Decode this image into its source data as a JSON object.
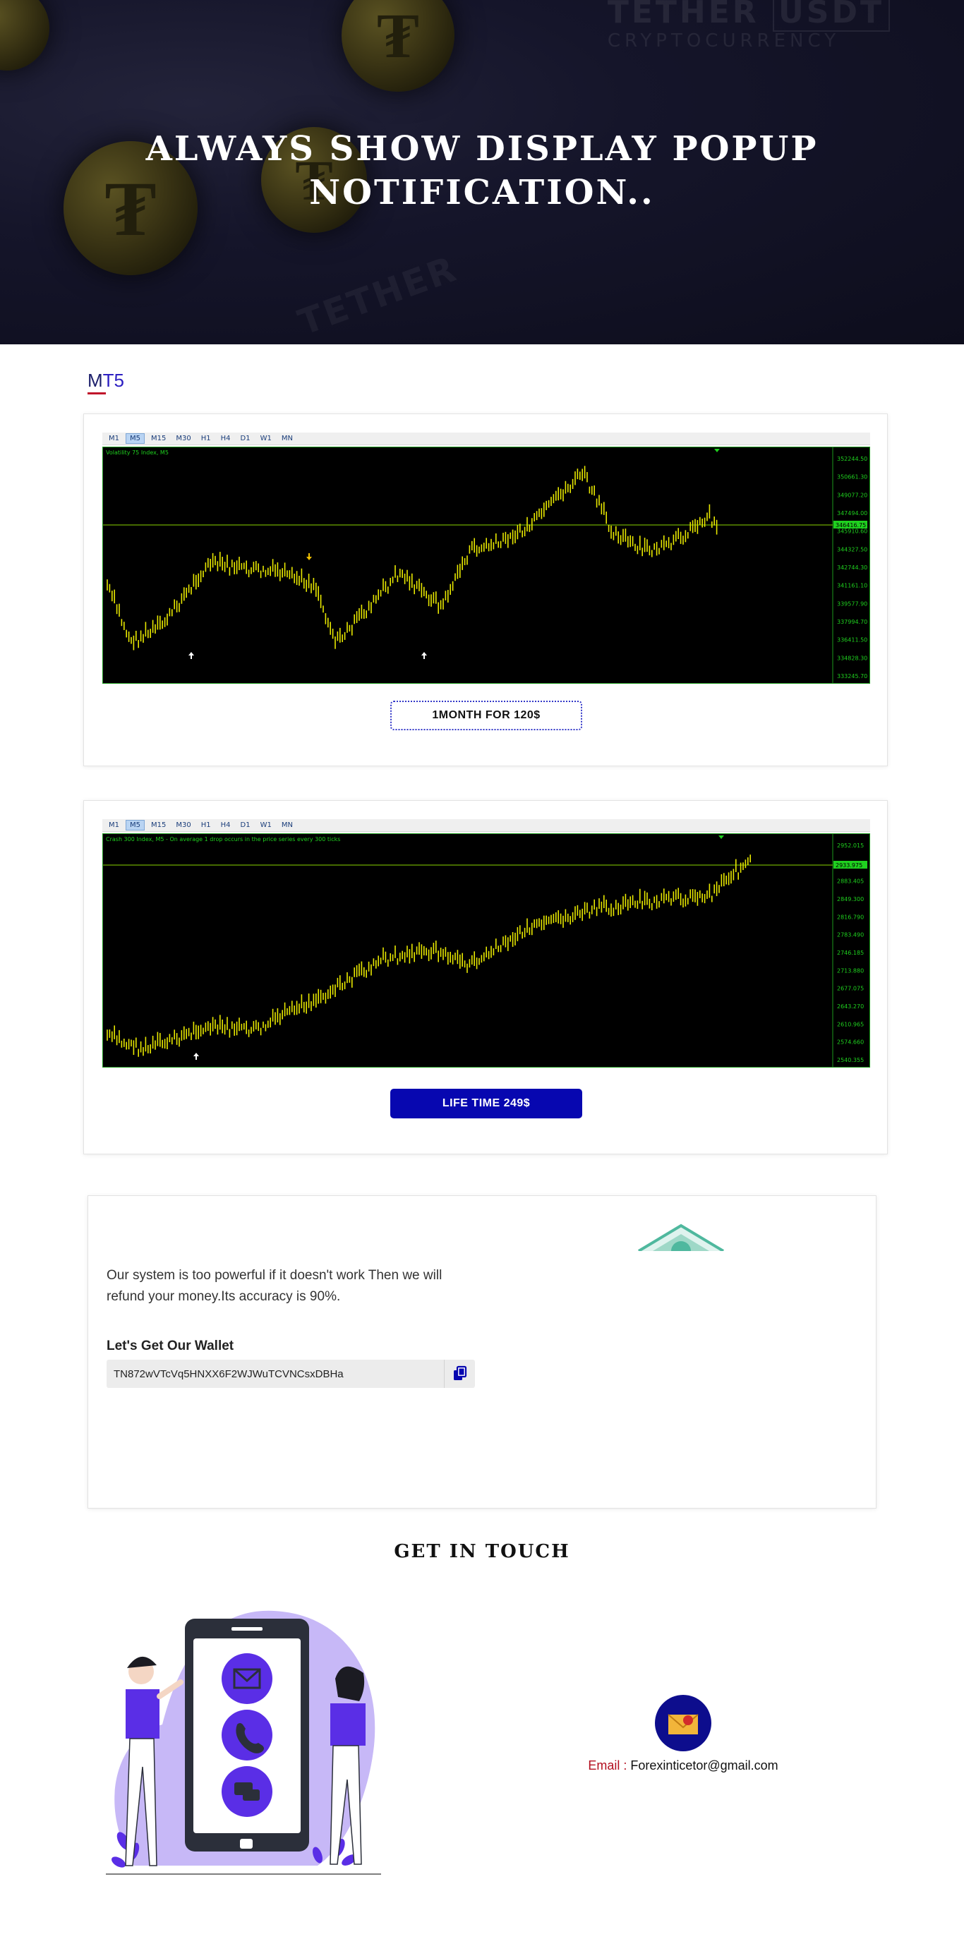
{
  "hero": {
    "title_line1": "Always show display popup",
    "title_line2": "notification..",
    "bg_brand_top": "TETHER",
    "bg_brand_badge": "USDT",
    "bg_brand_sub": "CRYPTOCURRENCY",
    "bg_word": "TETHER",
    "coin_glyph": "₮"
  },
  "section": {
    "platform_first": "M",
    "platform_rest": "T5"
  },
  "timeframes": [
    "M1",
    "M5",
    "M15",
    "M30",
    "H1",
    "H4",
    "D1",
    "W1",
    "MN"
  ],
  "active_timeframe": "M5",
  "products": [
    {
      "chart_label": "Volatility 75 Index, M5",
      "price_ticks": [
        "352244.50",
        "350661.30",
        "349077.20",
        "347494.00",
        "345910.60",
        "344327.50",
        "342744.30",
        "341161.10",
        "339577.90",
        "337994.70",
        "336411.50",
        "334828.30",
        "333245.70"
      ],
      "current_price": "346416.75",
      "button_label": "1MONTH FOR 120$",
      "button_style": "outline"
    },
    {
      "chart_label": "Crash 300 Index, M5 - On average 1 drop occurs in the price series every 300 ticks",
      "price_ticks": [
        "2952.015",
        "2916.960",
        "2883.405",
        "2849.300",
        "2816.790",
        "2783.490",
        "2746.185",
        "2713.880",
        "2677.075",
        "2643.270",
        "2610.965",
        "2574.660",
        "2540.355"
      ],
      "current_price": "2933.975",
      "button_label": "LIFE TIME 249$",
      "button_style": "solid"
    }
  ],
  "wallet": {
    "description": "Our system is too powerful if it doesn't work Then we will refund your money.Its accuracy is 90%.",
    "label": "Let's Get Our Wallet",
    "address": "TN872wVTcVq5HNXX6F2WJWuTCVNCsxDBHa"
  },
  "contact": {
    "heading": "Get In Touch",
    "email_key": "Email :",
    "email_value": "Forexinticetor@gmail.com"
  },
  "colors": {
    "brand_blue": "#0707b0",
    "accent_red": "#c0142b",
    "chart_candle": "#e8e800",
    "chart_grid": "#1c9a1c",
    "illustration_purple": "#5a2ee6"
  }
}
